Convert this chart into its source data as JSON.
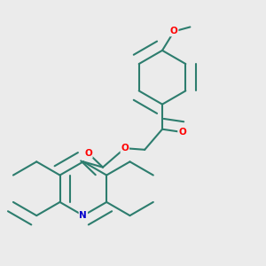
{
  "bg_color": "#ebebeb",
  "bond_color": "#2d7d6e",
  "oxygen_color": "#ff0000",
  "nitrogen_color": "#0000cc",
  "line_width": 1.5,
  "dbo": 0.018,
  "figsize": [
    3.0,
    3.0
  ],
  "dpi": 100,
  "ring_r": 0.092,
  "methoxy_O": "O",
  "methoxy_label": "O",
  "N_label": "N",
  "O_label": "O"
}
